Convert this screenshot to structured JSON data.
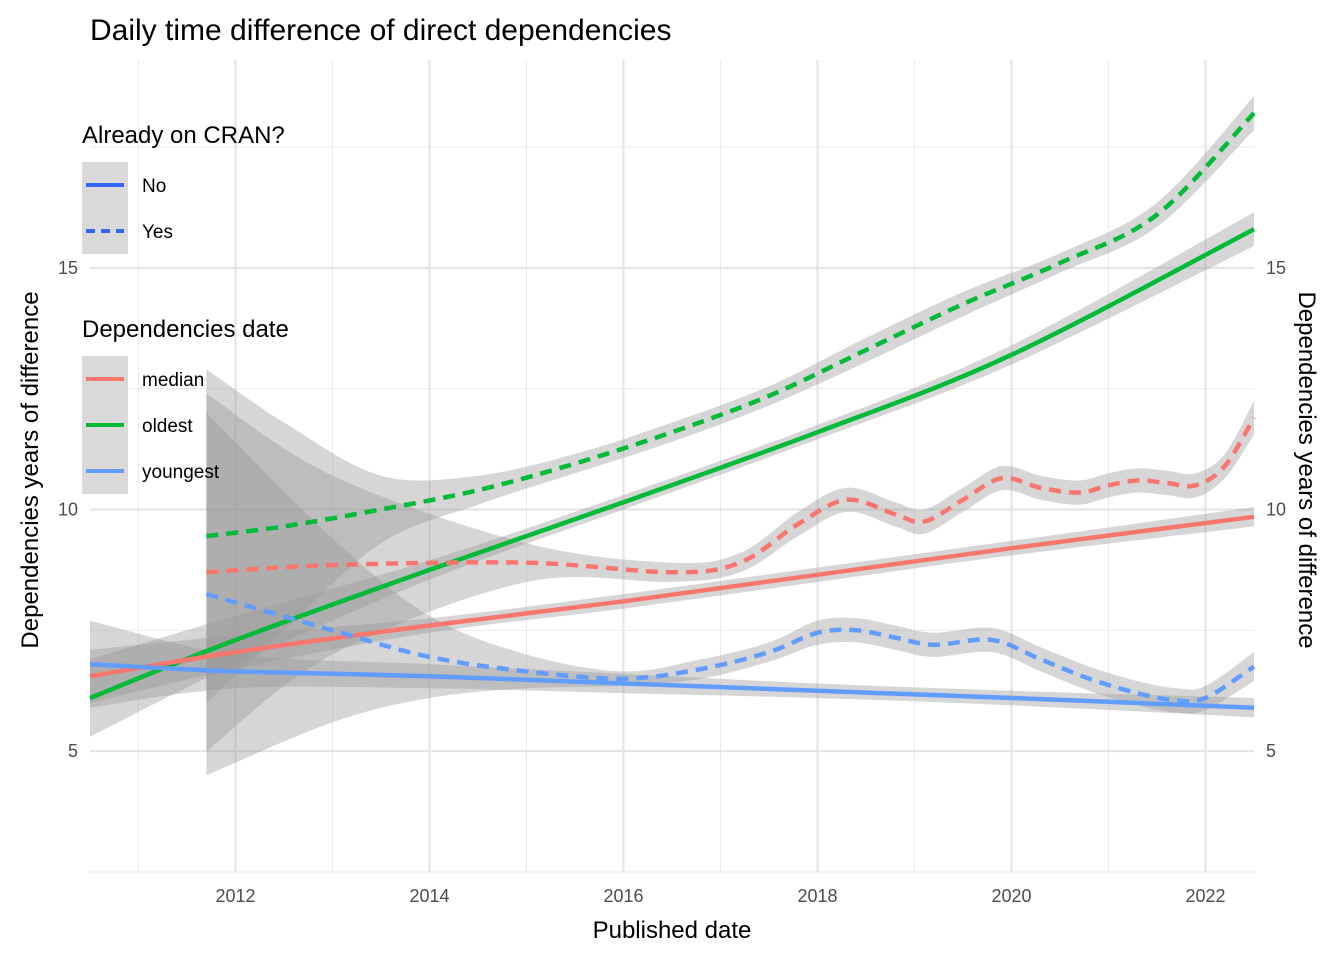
{
  "chart_data": {
    "type": "line",
    "title": "Daily time difference of direct dependencies",
    "xlabel": "Published date",
    "ylabel": "Dependencies years of difference",
    "ylabel_right": "Dependencies years of difference",
    "xlim": [
      2010.5,
      2022.5
    ],
    "ylim": [
      2.5,
      19.3
    ],
    "x_ticks": [
      2012,
      2014,
      2016,
      2018,
      2020,
      2022
    ],
    "x_tick_labels": [
      "2012",
      "2014",
      "2016",
      "2018",
      "2020",
      "2022"
    ],
    "y_ticks": [
      5,
      10,
      15
    ],
    "y_tick_labels": [
      "5",
      "10",
      "15"
    ],
    "grid": true,
    "legends": [
      {
        "title": "Already on CRAN?",
        "placement": "left-inside-top",
        "entries": [
          {
            "label": "No",
            "linetype": "solid"
          },
          {
            "label": "Yes",
            "linetype": "dashed"
          }
        ]
      },
      {
        "title": "Dependencies date",
        "placement": "left-inside-middle",
        "entries": [
          {
            "label": "median",
            "color": "#F8766D"
          },
          {
            "label": "oldest",
            "color": "#00BA38"
          },
          {
            "label": "youngest",
            "color": "#619CFF"
          }
        ]
      }
    ],
    "series": [
      {
        "group": "oldest",
        "cran": "No",
        "color": "#00BA38",
        "dashed": false,
        "x": [
          2010.5,
          2012,
          2014,
          2016,
          2018,
          2020,
          2022.5
        ],
        "y": [
          6.1,
          7.3,
          8.75,
          10.15,
          11.6,
          13.2,
          15.8
        ],
        "lower": [
          5.3,
          6.8,
          8.55,
          10.0,
          11.45,
          13.0,
          15.45
        ],
        "upper": [
          6.9,
          7.8,
          8.95,
          10.3,
          11.75,
          13.4,
          16.15
        ]
      },
      {
        "group": "median",
        "cran": "No",
        "color": "#F8766D",
        "dashed": false,
        "x": [
          2010.5,
          2012,
          2014,
          2016,
          2018,
          2020,
          2022.5
        ],
        "y": [
          6.55,
          7.05,
          7.6,
          8.1,
          8.65,
          9.2,
          9.85
        ],
        "lower": [
          6.0,
          6.7,
          7.45,
          7.95,
          8.5,
          9.05,
          9.65
        ],
        "upper": [
          7.1,
          7.4,
          7.75,
          8.25,
          8.8,
          9.35,
          10.05
        ]
      },
      {
        "group": "youngest",
        "cran": "No",
        "color": "#619CFF",
        "dashed": false,
        "x": [
          2010.5,
          2012,
          2014,
          2016,
          2018,
          2020,
          2022.5
        ],
        "y": [
          6.8,
          6.65,
          6.55,
          6.4,
          6.25,
          6.1,
          5.9
        ],
        "lower": [
          5.9,
          6.3,
          6.3,
          6.2,
          6.1,
          5.95,
          5.7
        ],
        "upper": [
          7.7,
          7.0,
          6.8,
          6.6,
          6.4,
          6.25,
          6.1
        ]
      },
      {
        "group": "oldest",
        "cran": "Yes",
        "color": "#00BA38",
        "dashed": true,
        "x": [
          2011.7,
          2012.5,
          2013.5,
          2014.5,
          2015.5,
          2016.5,
          2017.5,
          2018.5,
          2019.5,
          2020.5,
          2021.5,
          2022.5
        ],
        "y": [
          9.45,
          9.65,
          10.0,
          10.4,
          10.95,
          11.6,
          12.35,
          13.3,
          14.25,
          15.1,
          16.1,
          18.2
        ],
        "lower": [
          6.0,
          7.5,
          9.3,
          10.1,
          10.75,
          11.4,
          12.15,
          13.05,
          14.0,
          14.9,
          15.85,
          17.85
        ],
        "upper": [
          12.9,
          11.8,
          10.7,
          10.7,
          11.15,
          11.8,
          12.55,
          13.55,
          14.5,
          15.3,
          16.35,
          18.55
        ]
      },
      {
        "group": "median",
        "cran": "Yes",
        "color": "#F8766D",
        "dashed": true,
        "x": [
          2011.7,
          2013,
          2015,
          2016.5,
          2017.2,
          2017.8,
          2018.3,
          2018.8,
          2019.1,
          2019.5,
          2019.9,
          2020.3,
          2020.7,
          2021.0,
          2021.3,
          2021.6,
          2021.9,
          2022.2,
          2022.5
        ],
        "y": [
          8.7,
          8.85,
          8.9,
          8.7,
          8.9,
          9.7,
          10.2,
          9.9,
          9.75,
          10.2,
          10.65,
          10.45,
          10.35,
          10.5,
          10.6,
          10.55,
          10.5,
          10.9,
          11.9
        ],
        "lower": [
          5.0,
          7.0,
          8.5,
          8.5,
          8.7,
          9.45,
          9.95,
          9.65,
          9.5,
          9.95,
          10.4,
          10.2,
          10.1,
          10.25,
          10.35,
          10.3,
          10.25,
          10.65,
          11.55
        ],
        "upper": [
          12.4,
          10.7,
          9.3,
          8.9,
          9.1,
          9.95,
          10.45,
          10.15,
          10.0,
          10.45,
          10.9,
          10.7,
          10.6,
          10.75,
          10.85,
          10.8,
          10.75,
          11.15,
          12.25
        ]
      },
      {
        "group": "youngest",
        "cran": "Yes",
        "color": "#619CFF",
        "dashed": true,
        "x": [
          2011.7,
          2013,
          2014,
          2015,
          2016,
          2016.8,
          2017.5,
          2018.0,
          2018.4,
          2018.8,
          2019.2,
          2019.8,
          2020.3,
          2020.8,
          2021.3,
          2021.7,
          2022.0,
          2022.5
        ],
        "y": [
          8.25,
          7.5,
          6.95,
          6.65,
          6.5,
          6.7,
          7.05,
          7.45,
          7.5,
          7.35,
          7.2,
          7.3,
          6.9,
          6.5,
          6.2,
          6.05,
          6.1,
          6.75
        ],
        "lower": [
          4.5,
          5.6,
          6.1,
          6.3,
          6.35,
          6.5,
          6.85,
          7.2,
          7.25,
          7.1,
          6.95,
          7.05,
          6.65,
          6.25,
          5.95,
          5.8,
          5.85,
          6.45
        ],
        "upper": [
          12.0,
          9.4,
          7.8,
          7.0,
          6.65,
          6.9,
          7.25,
          7.7,
          7.75,
          7.6,
          7.45,
          7.55,
          7.15,
          6.75,
          6.45,
          6.3,
          6.35,
          7.05
        ]
      }
    ]
  }
}
